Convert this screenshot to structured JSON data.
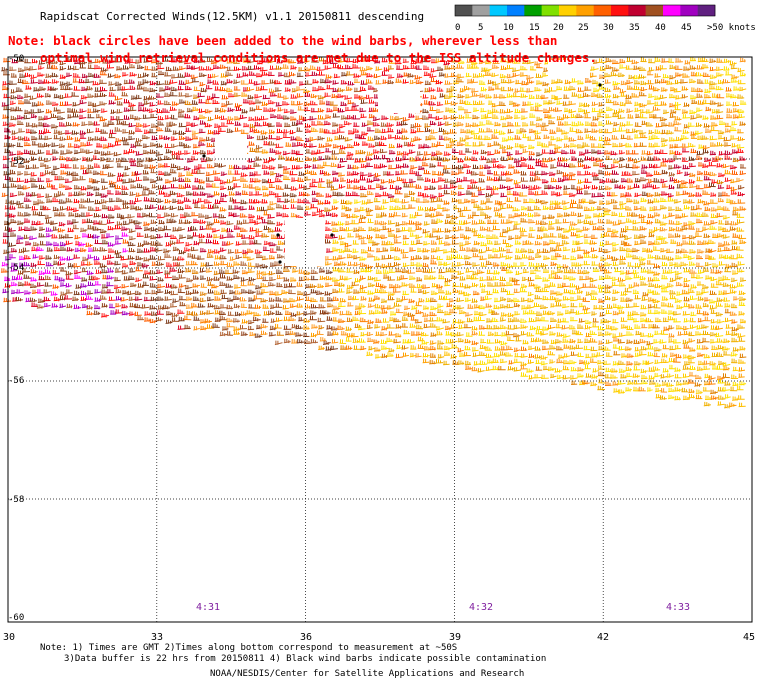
{
  "header": {
    "title": "Rapidscat Corrected Winds(12.5KM) v1.1 20150811 descending",
    "note_line1": "Note: black circles have been added to the wind barbs, wherever less than",
    "note_line2": "optimal wind retrieval conditions are met due to the ISS altitude changes."
  },
  "legend": {
    "ticks": [
      "0",
      "5",
      "10",
      "15",
      "20",
      "25",
      "30",
      "35",
      "40",
      "45",
      ">50 knots"
    ],
    "colors": [
      "#505050",
      "#a0a0a0",
      "#00c8ff",
      "#0080ff",
      "#00a000",
      "#80e000",
      "#ffd000",
      "#ffa000",
      "#ff6000",
      "#ff1010",
      "#c00030",
      "#a05020",
      "#ff00ff",
      "#a000c0",
      "#602080"
    ]
  },
  "map": {
    "lon_labels": [
      "30",
      "33",
      "36",
      "39",
      "42",
      "45"
    ],
    "lat_labels": [
      "-50",
      "-52",
      "-54",
      "-56",
      "-58",
      "-60"
    ],
    "lon_range": [
      30,
      45
    ],
    "lat_range": [
      -60,
      -50
    ],
    "swath_color_order": [
      "yellow-east",
      "orange-center",
      "red-north",
      "brown-west",
      "purple-southwest"
    ],
    "time_labels": [
      {
        "text": "4:31",
        "lon": 34
      },
      {
        "text": "4:32",
        "lon": 39.5
      },
      {
        "text": "4:33",
        "lon": 43.5
      }
    ],
    "time_color": "#8020a0"
  },
  "footer": {
    "note_line1": "Note: 1) Times are GMT 2)Times along bottom correspond to measurement at ~50S",
    "note_line2": "3)Data buffer is 22 hrs from 20150811 4) Black wind barbs indicate possible contamination",
    "credit": "NOAA/NESDIS/Center for Satellite Applications and Research"
  },
  "colors": {
    "note_text": "#ff0000",
    "grid": "#000000"
  }
}
